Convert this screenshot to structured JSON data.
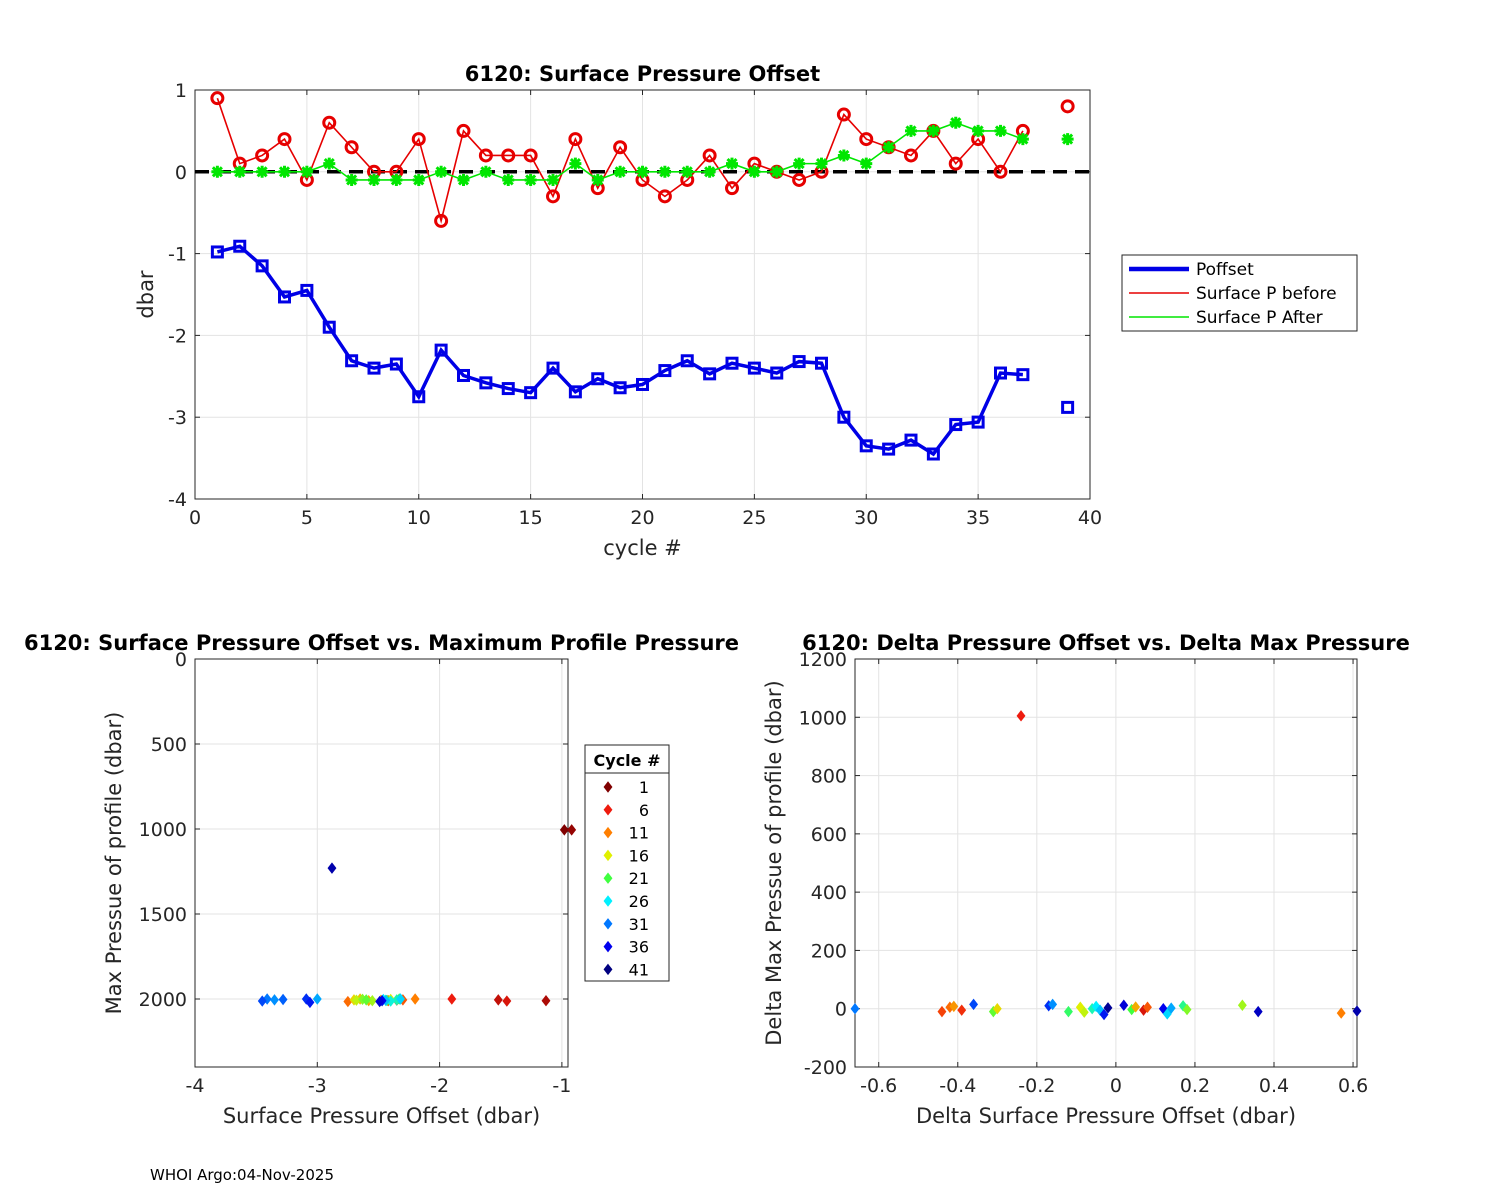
{
  "footer": "WHOI Argo:04-Nov-2025",
  "chart_data": [
    {
      "type": "line",
      "title": "6120: Surface Pressure Offset",
      "xlabel": "cycle #",
      "ylabel": "dbar",
      "xlim": [
        0,
        40
      ],
      "ylim": [
        -4,
        1
      ],
      "xticks": [
        0,
        5,
        10,
        15,
        20,
        25,
        30,
        35,
        40
      ],
      "yticks": [
        -4,
        -3,
        -2,
        -1,
        0,
        1
      ],
      "grid": true,
      "reference_line": {
        "y": 0,
        "style": "dashed",
        "color": "#000000"
      },
      "legend": {
        "position": "outside-right",
        "entries": [
          "Poffset",
          "Surface P before",
          "Surface P After"
        ]
      },
      "series": [
        {
          "name": "Poffset",
          "color": "#0000e6",
          "marker": "square",
          "x": [
            1,
            2,
            3,
            4,
            5,
            6,
            7,
            8,
            9,
            10,
            11,
            12,
            13,
            14,
            15,
            16,
            17,
            18,
            19,
            20,
            21,
            22,
            23,
            24,
            25,
            26,
            27,
            28,
            29,
            30,
            31,
            32,
            33,
            34,
            35,
            36,
            37,
            39
          ],
          "y": [
            -0.98,
            -0.91,
            -1.15,
            -1.53,
            -1.45,
            -1.9,
            -2.31,
            -2.4,
            -2.35,
            -2.75,
            -2.18,
            -2.49,
            -2.58,
            -2.65,
            -2.7,
            -2.4,
            -2.69,
            -2.53,
            -2.64,
            -2.6,
            -2.43,
            -2.31,
            -2.47,
            -2.34,
            -2.4,
            -2.46,
            -2.32,
            -2.34,
            -3.0,
            -3.35,
            -3.39,
            -3.28,
            -3.45,
            -3.09,
            -3.06,
            -2.46,
            -2.48,
            -2.88
          ]
        },
        {
          "name": "Surface P before",
          "color": "#e60000",
          "marker": "diamond",
          "x": [
            1,
            2,
            3,
            4,
            5,
            6,
            7,
            8,
            9,
            10,
            11,
            12,
            13,
            14,
            15,
            16,
            17,
            18,
            19,
            20,
            21,
            22,
            23,
            24,
            25,
            26,
            27,
            28,
            29,
            30,
            31,
            32,
            33,
            34,
            35,
            36,
            37,
            39
          ],
          "y": [
            0.9,
            0.1,
            0.2,
            0.4,
            -0.1,
            0.6,
            0.3,
            0.0,
            0.0,
            0.4,
            -0.6,
            0.5,
            0.2,
            0.2,
            0.2,
            -0.3,
            0.4,
            -0.2,
            0.3,
            -0.1,
            -0.3,
            -0.1,
            0.2,
            -0.2,
            0.1,
            0.0,
            -0.1,
            0.0,
            0.7,
            0.4,
            0.3,
            0.2,
            0.5,
            0.1,
            0.4,
            0.0,
            0.5,
            0.8
          ]
        },
        {
          "name": "Surface P After",
          "color": "#00e600",
          "marker": "asterisk",
          "x": [
            1,
            2,
            3,
            4,
            5,
            6,
            7,
            8,
            9,
            10,
            11,
            12,
            13,
            14,
            15,
            16,
            17,
            18,
            19,
            20,
            21,
            22,
            23,
            24,
            25,
            26,
            27,
            28,
            29,
            30,
            31,
            32,
            33,
            34,
            35,
            36,
            37,
            39
          ],
          "y": [
            0.0,
            0.0,
            0.0,
            0.0,
            0.0,
            0.1,
            -0.1,
            -0.1,
            -0.1,
            -0.1,
            0.0,
            -0.1,
            0.0,
            -0.1,
            -0.1,
            -0.1,
            0.1,
            -0.1,
            0.0,
            0.0,
            0.0,
            0.0,
            0.0,
            0.1,
            0.0,
            0.0,
            0.1,
            0.1,
            0.2,
            0.1,
            0.3,
            0.5,
            0.5,
            0.6,
            0.5,
            0.5,
            0.4,
            0.4
          ]
        }
      ]
    },
    {
      "type": "scatter",
      "title": "6120: Surface Pressure Offset vs. Maximum Profile Pressure",
      "xlabel": "Surface Pressure Offset (dbar)",
      "ylabel": "Max Pressue of profile (dbar)",
      "xlim": [
        -4,
        -0.95
      ],
      "ylim": [
        0,
        2400
      ],
      "y_reversed": true,
      "xticks": [
        -4,
        -3,
        -2,
        -1
      ],
      "yticks": [
        0,
        500,
        1000,
        1500,
        2000
      ],
      "grid": true,
      "legend": {
        "title": "Cycle #",
        "position": "outside-right",
        "entries": [
          {
            "label": "1",
            "color": "#800000"
          },
          {
            "label": "6",
            "color": "#ee1b0e"
          },
          {
            "label": "11",
            "color": "#ff7f00"
          },
          {
            "label": "16",
            "color": "#e0f000"
          },
          {
            "label": "21",
            "color": "#40ff40"
          },
          {
            "label": "26",
            "color": "#00f0ff"
          },
          {
            "label": "31",
            "color": "#0078ff"
          },
          {
            "label": "36",
            "color": "#0000ee"
          },
          {
            "label": "41",
            "color": "#000080"
          }
        ]
      },
      "points": [
        {
          "x": -0.98,
          "y": 1005,
          "cycle": 1
        },
        {
          "x": -0.92,
          "y": 1005,
          "cycle": 2
        },
        {
          "x": -1.13,
          "y": 2010,
          "cycle": 3
        },
        {
          "x": -1.52,
          "y": 2005,
          "cycle": 4
        },
        {
          "x": -1.45,
          "y": 2012,
          "cycle": 5
        },
        {
          "x": -1.9,
          "y": 2000,
          "cycle": 6
        },
        {
          "x": -2.35,
          "y": 2007,
          "cycle": 7
        },
        {
          "x": -2.42,
          "y": 2010,
          "cycle": 8
        },
        {
          "x": -2.3,
          "y": 2005,
          "cycle": 9
        },
        {
          "x": -2.75,
          "y": 2015,
          "cycle": 10
        },
        {
          "x": -2.2,
          "y": 2000,
          "cycle": 11
        },
        {
          "x": -2.48,
          "y": 2008,
          "cycle": 12
        },
        {
          "x": -2.58,
          "y": 2010,
          "cycle": 13
        },
        {
          "x": -2.65,
          "y": 2000,
          "cycle": 14
        },
        {
          "x": -2.7,
          "y": 2005,
          "cycle": 15
        },
        {
          "x": -2.4,
          "y": 2003,
          "cycle": 16
        },
        {
          "x": -2.68,
          "y": 2007,
          "cycle": 17
        },
        {
          "x": -2.55,
          "y": 2010,
          "cycle": 18
        },
        {
          "x": -2.63,
          "y": 2002,
          "cycle": 19
        },
        {
          "x": -2.6,
          "y": 2005,
          "cycle": 20
        },
        {
          "x": -2.43,
          "y": 2008,
          "cycle": 21
        },
        {
          "x": -2.33,
          "y": 2000,
          "cycle": 22
        },
        {
          "x": -2.47,
          "y": 2010,
          "cycle": 23
        },
        {
          "x": -2.35,
          "y": 2005,
          "cycle": 24
        },
        {
          "x": -2.4,
          "y": 2012,
          "cycle": 25
        },
        {
          "x": -2.46,
          "y": 2003,
          "cycle": 26
        },
        {
          "x": -2.32,
          "y": 2000,
          "cycle": 27
        },
        {
          "x": -2.44,
          "y": 2008,
          "cycle": 28
        },
        {
          "x": -3.0,
          "y": 2000,
          "cycle": 29
        },
        {
          "x": -3.35,
          "y": 2005,
          "cycle": 30
        },
        {
          "x": -3.41,
          "y": 2000,
          "cycle": 31
        },
        {
          "x": -3.28,
          "y": 2003,
          "cycle": 32
        },
        {
          "x": -3.45,
          "y": 2012,
          "cycle": 33
        },
        {
          "x": -3.09,
          "y": 2000,
          "cycle": 34
        },
        {
          "x": -3.06,
          "y": 2020,
          "cycle": 35
        },
        {
          "x": -2.47,
          "y": 2010,
          "cycle": 36
        },
        {
          "x": -2.49,
          "y": 2015,
          "cycle": 37
        },
        {
          "x": -2.88,
          "y": 1230,
          "cycle": 39
        }
      ]
    },
    {
      "type": "scatter",
      "title": "6120: Delta Pressure Offset vs. Delta Max Pressure",
      "xlabel": "Delta Surface Pressure Offset (dbar)",
      "ylabel": "Delta Max Pressue of profile (dbar)",
      "xlim": [
        -0.66,
        0.61
      ],
      "ylim": [
        -200,
        1200
      ],
      "xticks": [
        -0.6,
        -0.4,
        -0.2,
        0,
        0.2,
        0.4,
        0.6
      ],
      "yticks": [
        -200,
        0,
        200,
        400,
        600,
        800,
        1000,
        1200
      ],
      "grid": true,
      "points": [
        {
          "x": -0.66,
          "y": 0,
          "cycle": 31
        },
        {
          "x": -0.44,
          "y": -10,
          "cycle": 8
        },
        {
          "x": -0.42,
          "y": 5,
          "cycle": 10
        },
        {
          "x": -0.41,
          "y": 8,
          "cycle": 12
        },
        {
          "x": -0.39,
          "y": -5,
          "cycle": 7
        },
        {
          "x": -0.36,
          "y": 15,
          "cycle": 33
        },
        {
          "x": -0.31,
          "y": -10,
          "cycle": 20
        },
        {
          "x": -0.3,
          "y": 0,
          "cycle": 15
        },
        {
          "x": -0.24,
          "y": 1005,
          "cycle": 6
        },
        {
          "x": -0.17,
          "y": 10,
          "cycle": 34
        },
        {
          "x": -0.16,
          "y": 15,
          "cycle": 30
        },
        {
          "x": -0.12,
          "y": -10,
          "cycle": 22
        },
        {
          "x": -0.09,
          "y": 5,
          "cycle": 16
        },
        {
          "x": -0.08,
          "y": -12,
          "cycle": 17
        },
        {
          "x": -0.06,
          "y": 0,
          "cycle": 24
        },
        {
          "x": -0.05,
          "y": 8,
          "cycle": 26
        },
        {
          "x": -0.04,
          "y": -5,
          "cycle": 28
        },
        {
          "x": -0.03,
          "y": -20,
          "cycle": 35
        },
        {
          "x": -0.02,
          "y": 3,
          "cycle": 40
        },
        {
          "x": 0.02,
          "y": 12,
          "cycle": 37
        },
        {
          "x": 0.04,
          "y": -3,
          "cycle": 21
        },
        {
          "x": 0.05,
          "y": 6,
          "cycle": 13
        },
        {
          "x": 0.07,
          "y": -5,
          "cycle": 5
        },
        {
          "x": 0.08,
          "y": 5,
          "cycle": 9
        },
        {
          "x": 0.12,
          "y": 0,
          "cycle": 36
        },
        {
          "x": 0.13,
          "y": -18,
          "cycle": 27
        },
        {
          "x": 0.14,
          "y": 2,
          "cycle": 29
        },
        {
          "x": 0.17,
          "y": 10,
          "cycle": 23
        },
        {
          "x": 0.18,
          "y": -3,
          "cycle": 19
        },
        {
          "x": 0.32,
          "y": 12,
          "cycle": 18
        },
        {
          "x": 0.36,
          "y": -10,
          "cycle": 38
        },
        {
          "x": 0.57,
          "y": -15,
          "cycle": 11
        },
        {
          "x": 0.61,
          "y": -8,
          "cycle": 39
        }
      ]
    }
  ]
}
